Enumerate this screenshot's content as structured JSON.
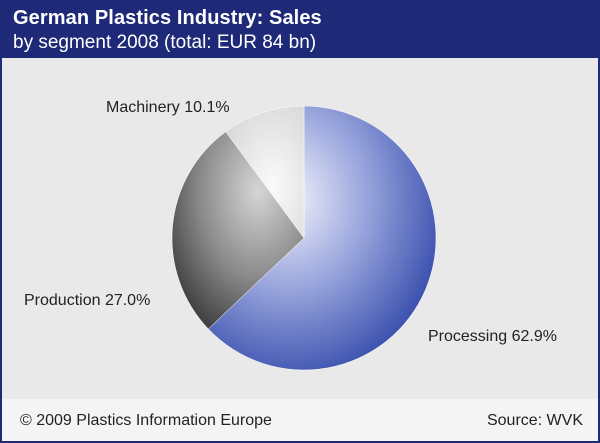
{
  "header": {
    "title": "German Plastics Industry: Sales",
    "subtitle": "by segment 2008 (total: EUR 84 bn)"
  },
  "footer": {
    "copyright": "© 2009 Plastics Information Europe",
    "source": "Source: WVK"
  },
  "colors": {
    "header_bg": "#1e2a78",
    "processing": "#3b55b3",
    "production": "#4a4a4a",
    "machinery": "#e6e6e6"
  },
  "chart_data": {
    "type": "pie",
    "title": "German Plastics Industry: Sales",
    "subtitle": "by segment 2008 (total: EUR 84 bn)",
    "slices": [
      {
        "label": "Processing",
        "value": 62.9,
        "display": "Processing 62.9%"
      },
      {
        "label": "Production",
        "value": 27.0,
        "display": "Production 27.0%"
      },
      {
        "label": "Machinery",
        "value": 10.1,
        "display": "Machinery 10.1%"
      }
    ]
  }
}
